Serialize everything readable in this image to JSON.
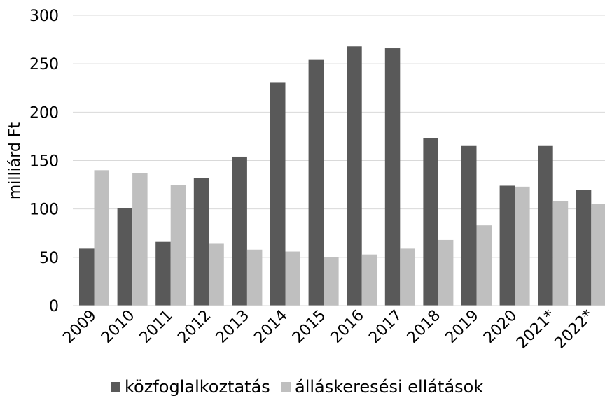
{
  "chart_data": {
    "type": "bar",
    "title": "",
    "xlabel": "",
    "ylabel": "milliárd Ft",
    "ylim": [
      0,
      300
    ],
    "yticks": [
      0,
      50,
      100,
      150,
      200,
      250,
      300
    ],
    "grid": true,
    "legend_position": "bottom",
    "categories": [
      "2009",
      "2010",
      "2011",
      "2012",
      "2013",
      "2014",
      "2015",
      "2016",
      "2017",
      "2018",
      "2019",
      "2020",
      "2021*",
      "2022*"
    ],
    "series": [
      {
        "name": "közfoglalkoztatás",
        "color": "#595959",
        "values": [
          59,
          101,
          66,
          132,
          154,
          231,
          254,
          268,
          266,
          173,
          165,
          124,
          165,
          120
        ]
      },
      {
        "name": "álláskeresési ellátások",
        "color": "#bfbfbf",
        "values": [
          140,
          137,
          125,
          64,
          58,
          56,
          50,
          53,
          59,
          68,
          83,
          123,
          108,
          105
        ]
      }
    ]
  }
}
